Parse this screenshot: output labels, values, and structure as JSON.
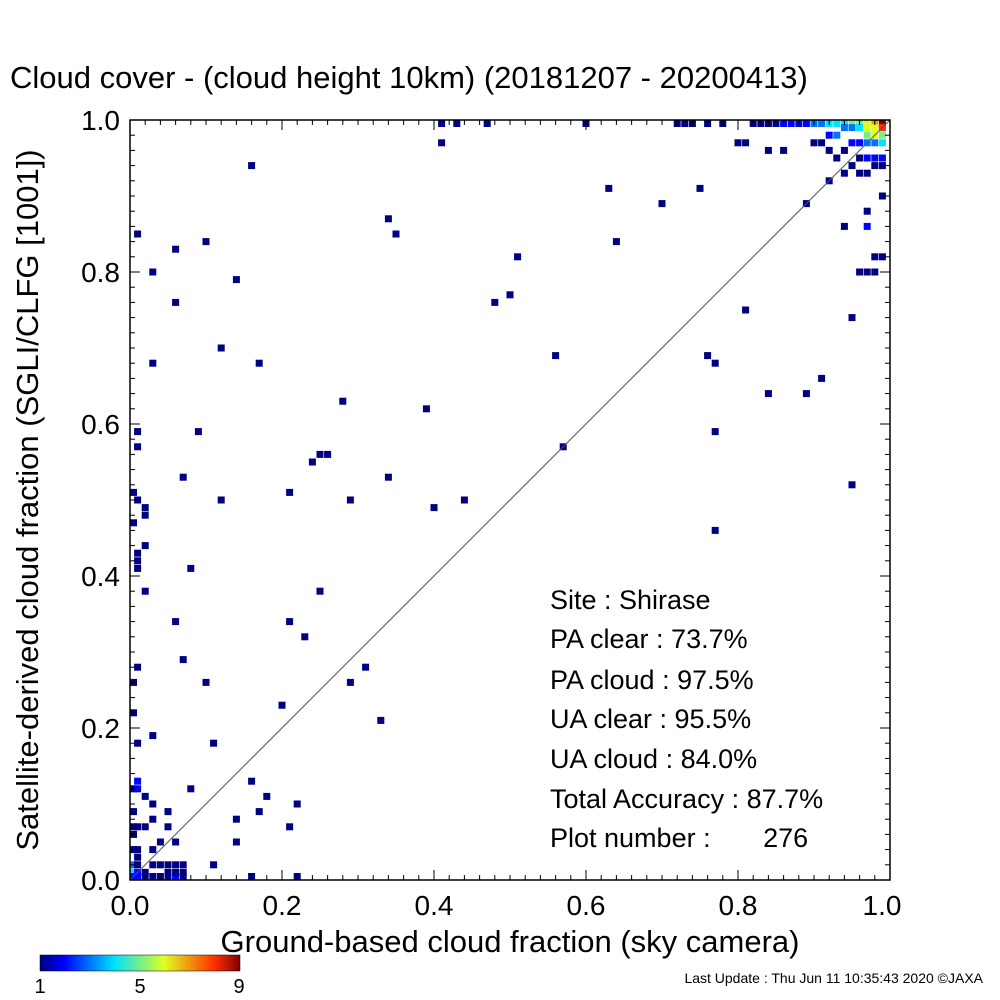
{
  "chart_data": {
    "type": "heatmap",
    "title": "Cloud cover - (cloud height 10km)  (20181207 - 20200413)",
    "xlabel": "Ground-based cloud fraction (sky camera)",
    "ylabel": "Satellite-derived cloud fraction (SGLI/CLFG [1001])",
    "xlim": [
      0,
      1
    ],
    "ylim": [
      0,
      1
    ],
    "x_ticks": [
      "0.0",
      "0.2",
      "0.4",
      "0.6",
      "0.8",
      "1.0"
    ],
    "y_ticks": [
      "0.0",
      "0.2",
      "0.4",
      "0.6",
      "0.8",
      "1.0"
    ],
    "grid": false,
    "reference_line": "y = x",
    "bin_size": 0.01,
    "colorbar": {
      "min": 1,
      "max": 9,
      "tick_labels": [
        "1",
        "5",
        "9"
      ]
    },
    "stats": {
      "site": "Site : Shirase",
      "pa_clear": "PA clear :  73.7%",
      "pa_cloud": "PA cloud :  97.5%",
      "ua_clear": "UA clear :  95.5%",
      "ua_cloud": "UA cloud :  84.0%",
      "total_accuracy": "Total Accuracy :  87.7%",
      "plot_number": "Plot number :       276"
    },
    "points": [
      [
        0.16,
        0.94,
        1
      ],
      [
        0.41,
        0.97,
        1
      ],
      [
        0.41,
        1.0,
        1
      ],
      [
        0.43,
        1.0,
        1
      ],
      [
        0.47,
        1.0,
        1
      ],
      [
        0.6,
        1.0,
        1
      ],
      [
        0.72,
        1.0,
        1
      ],
      [
        0.73,
        1.0,
        1
      ],
      [
        0.74,
        1.0,
        1
      ],
      [
        0.76,
        1.0,
        1
      ],
      [
        0.78,
        1.0,
        1
      ],
      [
        0.82,
        1.0,
        1
      ],
      [
        0.83,
        1.0,
        1
      ],
      [
        0.84,
        1.0,
        1
      ],
      [
        0.85,
        1.0,
        1
      ],
      [
        0.86,
        1.0,
        2
      ],
      [
        0.87,
        1.0,
        2
      ],
      [
        0.88,
        1.0,
        2
      ],
      [
        0.89,
        1.0,
        2
      ],
      [
        0.9,
        1.0,
        3
      ],
      [
        0.91,
        1.0,
        3
      ],
      [
        0.92,
        1.0,
        4
      ],
      [
        0.93,
        1.0,
        4
      ],
      [
        0.94,
        1.0,
        4
      ],
      [
        0.95,
        1.0,
        5
      ],
      [
        0.96,
        1.0,
        5
      ],
      [
        0.97,
        1.0,
        6
      ],
      [
        0.98,
        1.0,
        7
      ],
      [
        0.99,
        1.0,
        9
      ],
      [
        0.8,
        0.97,
        1
      ],
      [
        0.81,
        0.97,
        1
      ],
      [
        0.84,
        0.96,
        1
      ],
      [
        0.86,
        0.96,
        1
      ],
      [
        0.9,
        0.97,
        1
      ],
      [
        0.91,
        0.97,
        1
      ],
      [
        0.92,
        0.98,
        2
      ],
      [
        0.93,
        0.98,
        3
      ],
      [
        0.94,
        0.99,
        3
      ],
      [
        0.95,
        0.99,
        3
      ],
      [
        0.96,
        0.99,
        4
      ],
      [
        0.97,
        0.99,
        6
      ],
      [
        0.98,
        0.99,
        6
      ],
      [
        0.99,
        0.99,
        8
      ],
      [
        0.97,
        0.98,
        5
      ],
      [
        0.98,
        0.98,
        6
      ],
      [
        0.99,
        0.98,
        5
      ],
      [
        0.92,
        0.96,
        1
      ],
      [
        0.94,
        0.96,
        1
      ],
      [
        0.95,
        0.97,
        2
      ],
      [
        0.96,
        0.97,
        2
      ],
      [
        0.97,
        0.97,
        3
      ],
      [
        0.98,
        0.97,
        3
      ],
      [
        0.99,
        0.97,
        4
      ],
      [
        0.93,
        0.95,
        1
      ],
      [
        0.95,
        0.94,
        1
      ],
      [
        0.96,
        0.95,
        1
      ],
      [
        0.97,
        0.95,
        2
      ],
      [
        0.98,
        0.95,
        2
      ],
      [
        0.99,
        0.95,
        2
      ],
      [
        0.94,
        0.93,
        1
      ],
      [
        0.96,
        0.93,
        1
      ],
      [
        0.97,
        0.93,
        1
      ],
      [
        0.98,
        0.94,
        1
      ],
      [
        0.99,
        0.94,
        1
      ],
      [
        0.92,
        0.92,
        1
      ],
      [
        0.99,
        0.9,
        1
      ],
      [
        0.97,
        0.88,
        1
      ],
      [
        0.97,
        0.86,
        2
      ],
      [
        0.98,
        0.82,
        1
      ],
      [
        0.99,
        0.82,
        1
      ],
      [
        0.97,
        0.8,
        1
      ],
      [
        0.98,
        0.8,
        1
      ],
      [
        0.96,
        0.8,
        1
      ],
      [
        0.94,
        0.86,
        1
      ],
      [
        0.89,
        0.89,
        1
      ],
      [
        0.95,
        0.74,
        1
      ],
      [
        0.95,
        0.52,
        1
      ],
      [
        0.63,
        0.91,
        1
      ],
      [
        0.75,
        0.91,
        1
      ],
      [
        0.7,
        0.89,
        1
      ],
      [
        0.64,
        0.84,
        1
      ],
      [
        0.81,
        0.75,
        1
      ],
      [
        0.77,
        0.68,
        1
      ],
      [
        0.76,
        0.69,
        1
      ],
      [
        0.84,
        0.64,
        1
      ],
      [
        0.89,
        0.64,
        1
      ],
      [
        0.91,
        0.66,
        1
      ],
      [
        0.77,
        0.59,
        1
      ],
      [
        0.77,
        0.46,
        1
      ],
      [
        0.57,
        0.57,
        1
      ],
      [
        0.56,
        0.69,
        1
      ],
      [
        0.51,
        0.82,
        1
      ],
      [
        0.5,
        0.77,
        1
      ],
      [
        0.48,
        0.76,
        1
      ],
      [
        0.34,
        0.87,
        1
      ],
      [
        0.35,
        0.85,
        1
      ],
      [
        0.39,
        0.62,
        1
      ],
      [
        0.28,
        0.63,
        1
      ],
      [
        0.25,
        0.56,
        1
      ],
      [
        0.26,
        0.56,
        1
      ],
      [
        0.24,
        0.55,
        1
      ],
      [
        0.34,
        0.53,
        1
      ],
      [
        0.4,
        0.49,
        1
      ],
      [
        0.44,
        0.5,
        1
      ],
      [
        0.29,
        0.5,
        1
      ],
      [
        0.21,
        0.51,
        1
      ],
      [
        0.25,
        0.38,
        1
      ],
      [
        0.21,
        0.34,
        1
      ],
      [
        0.23,
        0.32,
        1
      ],
      [
        0.31,
        0.28,
        1
      ],
      [
        0.29,
        0.26,
        1
      ],
      [
        0.33,
        0.21,
        1
      ],
      [
        0.2,
        0.23,
        1
      ],
      [
        0.22,
        0.1,
        1
      ],
      [
        0.21,
        0.07,
        1
      ],
      [
        0.18,
        0.11,
        1
      ],
      [
        0.17,
        0.09,
        1
      ],
      [
        0.16,
        0.13,
        1
      ],
      [
        0.14,
        0.08,
        1
      ],
      [
        0.14,
        0.05,
        1
      ],
      [
        0.11,
        0.02,
        1
      ],
      [
        0.16,
        0.0,
        1
      ],
      [
        0.22,
        0.0,
        1
      ],
      [
        0.17,
        0.68,
        1
      ],
      [
        0.12,
        0.7,
        1
      ],
      [
        0.14,
        0.79,
        1
      ],
      [
        0.1,
        0.84,
        1
      ],
      [
        0.06,
        0.83,
        1
      ],
      [
        0.06,
        0.76,
        1
      ],
      [
        0.03,
        0.8,
        1
      ],
      [
        0.01,
        0.85,
        1
      ],
      [
        0.03,
        0.68,
        1
      ],
      [
        0.09,
        0.59,
        1
      ],
      [
        0.07,
        0.53,
        1
      ],
      [
        0.12,
        0.5,
        1
      ],
      [
        0.08,
        0.41,
        1
      ],
      [
        0.06,
        0.34,
        1
      ],
      [
        0.07,
        0.29,
        1
      ],
      [
        0.1,
        0.26,
        1
      ],
      [
        0.11,
        0.18,
        1
      ],
      [
        0.08,
        0.12,
        1
      ],
      [
        0.01,
        0.59,
        1
      ],
      [
        0.01,
        0.57,
        1
      ],
      [
        0.0,
        0.51,
        1
      ],
      [
        0.0,
        0.47,
        1
      ],
      [
        0.01,
        0.5,
        1
      ],
      [
        0.02,
        0.49,
        1
      ],
      [
        0.02,
        0.48,
        1
      ],
      [
        0.02,
        0.44,
        1
      ],
      [
        0.01,
        0.43,
        1
      ],
      [
        0.01,
        0.42,
        1
      ],
      [
        0.01,
        0.41,
        1
      ],
      [
        0.02,
        0.38,
        1
      ],
      [
        0.01,
        0.28,
        1
      ],
      [
        0.0,
        0.26,
        1
      ],
      [
        0.0,
        0.22,
        1
      ],
      [
        0.01,
        0.18,
        1
      ],
      [
        0.03,
        0.19,
        1
      ],
      [
        0.0,
        0.12,
        1
      ],
      [
        0.01,
        0.13,
        2
      ],
      [
        0.01,
        0.12,
        2
      ],
      [
        0.02,
        0.11,
        1
      ],
      [
        0.03,
        0.1,
        1
      ],
      [
        0.03,
        0.08,
        1
      ],
      [
        0.05,
        0.09,
        1
      ],
      [
        0.0,
        0.09,
        1
      ],
      [
        0.0,
        0.07,
        1
      ],
      [
        0.01,
        0.07,
        1
      ],
      [
        0.02,
        0.07,
        1
      ],
      [
        0.05,
        0.07,
        1
      ],
      [
        0.0,
        0.06,
        1
      ],
      [
        0.04,
        0.05,
        1
      ],
      [
        0.06,
        0.05,
        1
      ],
      [
        0.0,
        0.04,
        1
      ],
      [
        0.01,
        0.04,
        1
      ],
      [
        0.03,
        0.04,
        1
      ],
      [
        0.01,
        0.03,
        1
      ],
      [
        0.0,
        0.02,
        3
      ],
      [
        0.0,
        0.01,
        4
      ],
      [
        0.01,
        0.01,
        2
      ],
      [
        0.02,
        0.01,
        1
      ],
      [
        0.0,
        0.0,
        2
      ],
      [
        0.01,
        0.0,
        2
      ],
      [
        0.02,
        0.0,
        1
      ],
      [
        0.03,
        0.0,
        1
      ],
      [
        0.04,
        0.0,
        1
      ],
      [
        0.05,
        0.0,
        1
      ],
      [
        0.06,
        0.0,
        2
      ],
      [
        0.07,
        0.0,
        1
      ],
      [
        0.05,
        0.01,
        1
      ],
      [
        0.06,
        0.01,
        1
      ],
      [
        0.07,
        0.01,
        1
      ],
      [
        0.05,
        0.02,
        1
      ],
      [
        0.06,
        0.02,
        1
      ],
      [
        0.07,
        0.02,
        1
      ],
      [
        0.04,
        0.02,
        1
      ],
      [
        0.03,
        0.02,
        1
      ],
      [
        0.01,
        0.02,
        1
      ]
    ]
  },
  "footer": {
    "last_update": "Last Update : Thu Jun 11 10:35:43 2020  ©JAXA"
  },
  "colors": {
    "background": "#ffffff",
    "axis": "#000000",
    "diagonal": "#555555"
  }
}
